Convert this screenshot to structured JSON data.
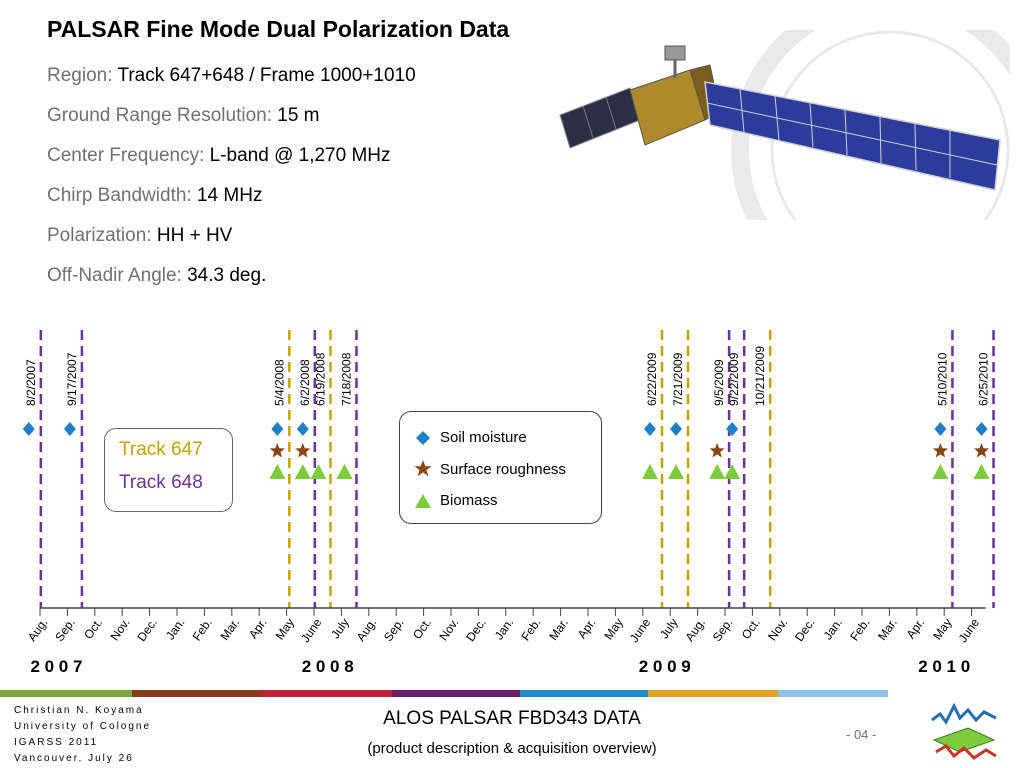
{
  "title": "PALSAR Fine Mode Dual Polarization Data",
  "info": [
    {
      "label": "Region:",
      "value": "Track 647+648 / Frame 1000+1010"
    },
    {
      "label": "Ground Range Resolution:",
      "value": " 15 m"
    },
    {
      "label": "Center Frequency:",
      "value": "L-band @ 1,270 MHz"
    },
    {
      "label": "Chirp Bandwidth:",
      "value": "14 MHz"
    },
    {
      "label": "Polarization:",
      "value": "HH + HV"
    },
    {
      "label": "Off-Nadir Angle:",
      "value": "34.3 deg."
    }
  ],
  "tracks": [
    {
      "label": "Track 647",
      "color": "#c9a000"
    },
    {
      "label": "Track 648",
      "color": "#7030a0"
    }
  ],
  "legend": [
    {
      "label": "Soil moisture",
      "icon": "diamond-icon",
      "color": "#1f7fc9"
    },
    {
      "label": "Surface roughness",
      "icon": "star-icon",
      "color": "#8b4513"
    },
    {
      "label": "Biomass",
      "icon": "triangle-icon",
      "color": "#7ccc3c"
    }
  ],
  "months": [
    "Aug.",
    "Sep.",
    "Oct.",
    "Nov.",
    "Dec.",
    "Jan.",
    "Feb.",
    "Mar.",
    "Apr.",
    "May",
    "June",
    "July",
    "Aug.",
    "Sep.",
    "Oct.",
    "Nov.",
    "Dec.",
    "Jan.",
    "Feb.",
    "Mar.",
    "Apr.",
    "May",
    "June",
    "July",
    "Aug.",
    "Sep.",
    "Oct.",
    "Nov.",
    "Dec.",
    "Jan.",
    "Feb.",
    "Mar.",
    "Apr.",
    "May",
    "June"
  ],
  "years": [
    {
      "label": "2 0 0 7",
      "month_index": 0.6
    },
    {
      "label": "2 0 0 8",
      "month_index": 10.5
    },
    {
      "label": "2 0 0 9",
      "month_index": 22.8
    },
    {
      "label": "2 0 1 0",
      "month_index": 33.0
    }
  ],
  "acquisitions": [
    {
      "date": "8/2/2007",
      "track": 648,
      "month_index": 0.03,
      "soil_moisture": true,
      "surface_roughness": false,
      "biomass": false
    },
    {
      "date": "9/17/2007",
      "track": 648,
      "month_index": 1.53,
      "soil_moisture": true,
      "surface_roughness": false,
      "biomass": false
    },
    {
      "date": "5/4/2008",
      "track": 647,
      "month_index": 9.1,
      "soil_moisture": true,
      "surface_roughness": true,
      "biomass": true
    },
    {
      "date": "6/2/2008",
      "track": 648,
      "month_index": 10.03,
      "soil_moisture": true,
      "surface_roughness": true,
      "biomass": true
    },
    {
      "date": "6/19/2008",
      "track": 647,
      "month_index": 10.6,
      "soil_moisture": false,
      "surface_roughness": false,
      "biomass": true
    },
    {
      "date": "7/18/2008",
      "track": 648,
      "month_index": 11.55,
      "soil_moisture": false,
      "surface_roughness": false,
      "biomass": true
    },
    {
      "date": "6/22/2009",
      "track": 647,
      "month_index": 22.7,
      "soil_moisture": true,
      "surface_roughness": false,
      "biomass": true
    },
    {
      "date": "7/21/2009",
      "track": 647,
      "month_index": 23.65,
      "soil_moisture": true,
      "surface_roughness": false,
      "biomass": true
    },
    {
      "date": "9/5/2009",
      "track": 648,
      "month_index": 25.15,
      "soil_moisture": false,
      "surface_roughness": true,
      "biomass": true
    },
    {
      "date": "9/22/2009",
      "track": 648,
      "month_index": 25.7,
      "soil_moisture": true,
      "surface_roughness": false,
      "biomass": true
    },
    {
      "date": "10/21/2009",
      "track": 647,
      "month_index": 26.65,
      "soil_moisture": false,
      "surface_roughness": false,
      "biomass": false
    },
    {
      "date": "5/10/2010",
      "track": 648,
      "month_index": 33.3,
      "soil_moisture": true,
      "surface_roughness": true,
      "biomass": true
    },
    {
      "date": "6/25/2010",
      "track": 648,
      "month_index": 34.8,
      "soil_moisture": true,
      "surface_roughness": true,
      "biomass": true
    }
  ],
  "footer": {
    "author": [
      "Christian N. Koyama",
      "University of Cologne",
      "IGARSS 2011",
      "Vancouver, July 26"
    ],
    "title": "ALOS PALSAR FBD343 DATA",
    "subtitle": "(product description & acquisition overview)",
    "page": "- 04 -",
    "band_colors": [
      "#7aa63a",
      "#8b3a1e",
      "#c0203a",
      "#6a1f6a",
      "#1f8ac9",
      "#e0a020",
      "#8fc4ea"
    ]
  }
}
